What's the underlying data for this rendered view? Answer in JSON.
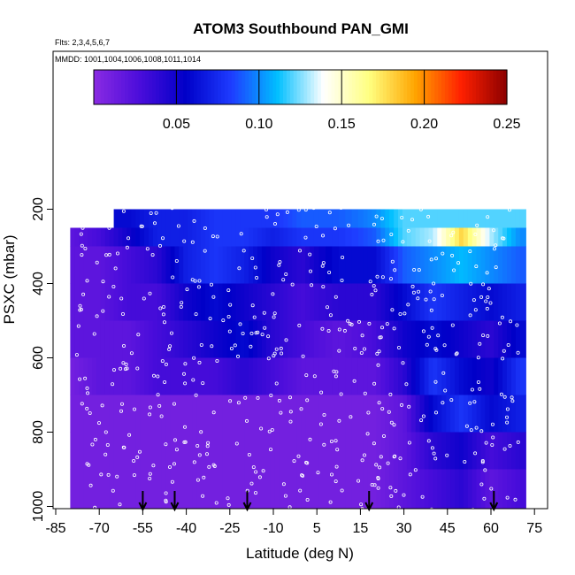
{
  "chart_data": {
    "type": "heatmap",
    "title": "ATOM3 Southbound PAN_GMI",
    "subtitle_flights": "Flts: 2,3,4,5,6,7",
    "subtitle_dates": "MMDD: 1001,1004,1006,1008,1011,1014",
    "xlabel": "Latitude (deg N)",
    "ylabel": "PSXC (mbar)",
    "xlim": [
      -85,
      85
    ],
    "ylim": [
      1015,
      60
    ],
    "y_reversed": true,
    "x_ticks": [
      "-85",
      "-70",
      "-55",
      "-40",
      "-25",
      "-10",
      "5",
      "15",
      "30",
      "45",
      "60",
      "75"
    ],
    "y_ticks": [
      "200",
      "400",
      "600",
      "800",
      "1000"
    ],
    "colorbar": {
      "range": [
        0,
        0.25
      ],
      "ticks": [
        "0.05",
        "0.10",
        "0.15",
        "0.20",
        "0.25"
      ],
      "colors": [
        "#8a2be2",
        "#4b0ddb",
        "#0000c8",
        "#1e3cff",
        "#00bfff",
        "#ffffff",
        "#ffff80",
        "#ffa500",
        "#ff2000",
        "#8b0000"
      ]
    },
    "profile_markers_lat": [
      -55,
      -44,
      -19,
      18,
      61
    ],
    "series": [
      {
        "band": [
          200,
          250
        ],
        "lat": [
          -60,
          -50,
          -40,
          -30,
          -20,
          -10,
          0,
          10,
          20,
          30,
          40,
          50,
          60,
          70
        ],
        "values": [
          0.06,
          0.07,
          0.07,
          0.08,
          0.08,
          0.08,
          0.09,
          0.09,
          0.1,
          0.12,
          0.12,
          0.12,
          0.12,
          0.12
        ]
      },
      {
        "band": [
          250,
          300
        ],
        "lat": [
          -80,
          -70,
          -60,
          -50,
          -40,
          -30,
          -20,
          -10,
          0,
          10,
          20,
          30,
          40,
          50,
          60,
          70
        ],
        "values": [
          0.02,
          0.03,
          0.05,
          0.07,
          0.07,
          0.08,
          0.08,
          0.07,
          0.08,
          0.08,
          0.09,
          0.12,
          0.13,
          0.18,
          0.13,
          0.1
        ]
      },
      {
        "band": [
          300,
          400
        ],
        "lat": [
          -80,
          -70,
          -60,
          -50,
          -40,
          -30,
          -20,
          -10,
          0,
          10,
          20,
          30,
          40,
          50,
          60,
          70
        ],
        "values": [
          0.02,
          0.02,
          0.03,
          0.04,
          0.07,
          0.08,
          0.07,
          0.05,
          0.04,
          0.06,
          0.06,
          0.09,
          0.1,
          0.11,
          0.1,
          0.09
        ]
      },
      {
        "band": [
          400,
          500
        ],
        "lat": [
          -80,
          -70,
          -60,
          -50,
          -40,
          -30,
          -20,
          -10,
          0,
          10,
          20,
          30,
          40,
          50,
          60,
          70
        ],
        "values": [
          0.02,
          0.02,
          0.03,
          0.03,
          0.05,
          0.06,
          0.05,
          0.04,
          0.03,
          0.04,
          0.04,
          0.06,
          0.08,
          0.07,
          0.06,
          0.07
        ]
      },
      {
        "band": [
          500,
          600
        ],
        "lat": [
          -80,
          -70,
          -60,
          -50,
          -40,
          -30,
          -20,
          -10,
          0,
          10,
          20,
          30,
          40,
          50,
          60,
          70
        ],
        "values": [
          0.02,
          0.02,
          0.02,
          0.03,
          0.04,
          0.05,
          0.06,
          0.04,
          0.03,
          0.02,
          0.03,
          0.05,
          0.06,
          0.05,
          0.04,
          0.06
        ]
      },
      {
        "band": [
          600,
          700
        ],
        "lat": [
          -80,
          -70,
          -60,
          -50,
          -40,
          -30,
          -20,
          -10,
          0,
          10,
          20,
          30,
          40,
          50,
          60,
          70
        ],
        "values": [
          0.01,
          0.02,
          0.02,
          0.03,
          0.03,
          0.03,
          0.04,
          0.03,
          0.02,
          0.02,
          0.02,
          0.04,
          0.08,
          0.06,
          0.05,
          0.08
        ]
      },
      {
        "band": [
          700,
          800
        ],
        "lat": [
          -80,
          -70,
          -60,
          -50,
          -40,
          -30,
          -20,
          -10,
          0,
          10,
          20,
          30,
          40,
          50,
          60,
          70
        ],
        "values": [
          0.01,
          0.01,
          0.01,
          0.01,
          0.01,
          0.01,
          0.01,
          0.01,
          0.01,
          0.01,
          0.01,
          0.02,
          0.06,
          0.08,
          0.06,
          0.07
        ]
      },
      {
        "band": [
          800,
          900
        ],
        "lat": [
          -80,
          -70,
          -60,
          -50,
          -40,
          -30,
          -20,
          -10,
          0,
          10,
          20,
          30,
          40,
          50,
          60,
          70
        ],
        "values": [
          0.01,
          0.01,
          0.01,
          0.01,
          0.01,
          0.01,
          0.01,
          0.01,
          0.01,
          0.01,
          0.01,
          0.02,
          0.04,
          0.05,
          0.03,
          0.04
        ]
      },
      {
        "band": [
          900,
          1010
        ],
        "lat": [
          -80,
          -70,
          -60,
          -50,
          -40,
          -30,
          -20,
          -10,
          0,
          10,
          20,
          30,
          40,
          50,
          60,
          70
        ],
        "values": [
          0.01,
          0.01,
          0.01,
          0.01,
          0.01,
          0.01,
          0.01,
          0.01,
          0.01,
          0.01,
          0.01,
          0.02,
          0.03,
          0.04,
          0.02,
          0.03
        ]
      }
    ]
  }
}
